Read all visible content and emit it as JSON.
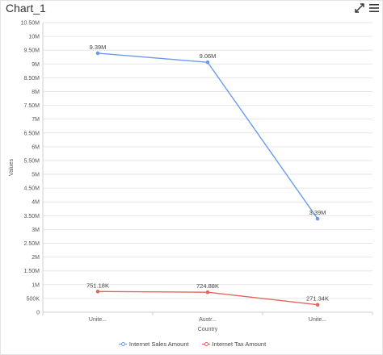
{
  "widget": {
    "title": "Chart_1",
    "icons": {
      "expand": "expand-arrows-icon",
      "menu": "hamburger-menu-icon"
    }
  },
  "chart_data": {
    "type": "line",
    "categories": [
      "Unite...",
      "Austr...",
      "Unite..."
    ],
    "series": [
      {
        "name": "Internet Sales Amount",
        "color": "#6a9ae8",
        "values": [
          9390000,
          9060000,
          3390000
        ],
        "labels": [
          "9.39M",
          "9.06M",
          "3.39M"
        ]
      },
      {
        "name": "Internet Tax Amount",
        "color": "#e0675d",
        "values": [
          751180,
          724880,
          271340
        ],
        "labels": [
          "751.18K",
          "724.88K",
          "271.34K"
        ]
      }
    ],
    "xlabel": "Country",
    "ylabel": "Values",
    "ylim": [
      0,
      10500000
    ],
    "yticks": [
      0,
      500000,
      1000000,
      1500000,
      2000000,
      2500000,
      3000000,
      3500000,
      4000000,
      4500000,
      5000000,
      5500000,
      6000000,
      6500000,
      7000000,
      7500000,
      8000000,
      8500000,
      9000000,
      9500000,
      10000000,
      10500000
    ],
    "ytick_labels": [
      "0",
      "500K",
      "1M",
      "1.50M",
      "2M",
      "2.50M",
      "3M",
      "3.50M",
      "4M",
      "4.50M",
      "5M",
      "5.50M",
      "6M",
      "6.50M",
      "7M",
      "7.50M",
      "8M",
      "8.50M",
      "9M",
      "9.50M",
      "10M",
      "10.50M"
    ],
    "grid": true,
    "legend_position": "bottom"
  }
}
